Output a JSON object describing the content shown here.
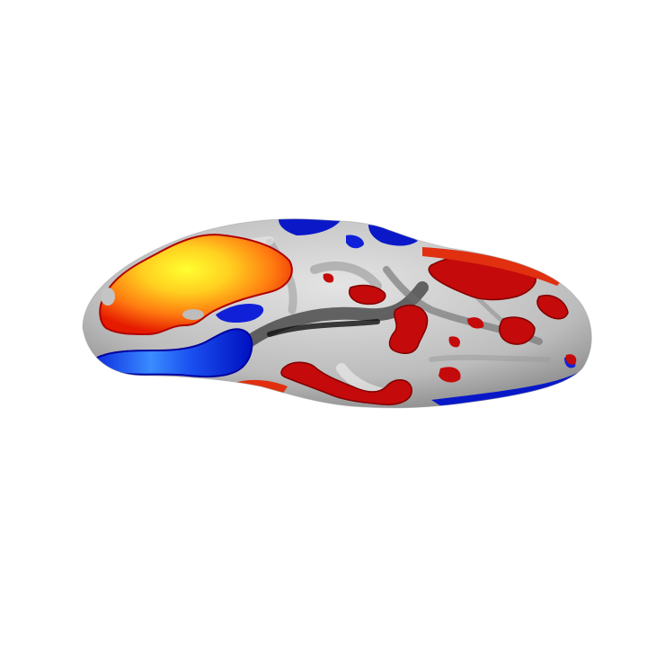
{
  "scene": {
    "subject": "inflated-cortical-surface",
    "view": "lateral",
    "background_color": "#ffffff",
    "surface_colors": {
      "base_light": "#d9d9d9",
      "base_mid": "#a8a8a8",
      "sulcus_dark": "#262626"
    },
    "activation_colors": {
      "positive_low": "#b30000",
      "positive_mid": "#ff3000",
      "positive_high": "#ffff20",
      "negative_low": "#0000c8",
      "negative_high": "#4aa8ff"
    }
  }
}
